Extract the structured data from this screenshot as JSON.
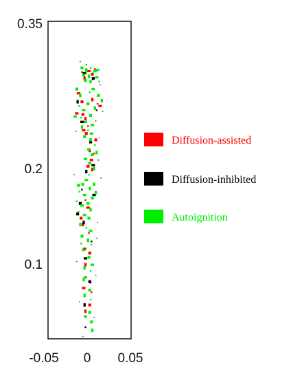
{
  "chart_data": {
    "type": "scatter",
    "xlim": [
      -0.05,
      0.05
    ],
    "ylim": [
      0.05,
      0.35
    ],
    "xticks": [
      {
        "value": -0.05,
        "label": "-0.05"
      },
      {
        "value": 0,
        "label": "0"
      },
      {
        "value": 0.05,
        "label": "0.05"
      }
    ],
    "yticks": [
      {
        "value": 0.35,
        "label": "0.35"
      },
      {
        "value": 0.2,
        "label": "0.2"
      },
      {
        "value": 0.1,
        "label": "0.1"
      }
    ],
    "grid": false,
    "legend_position": "right",
    "series": [
      {
        "name": "Diffusion-assisted",
        "color": "#ff0000",
        "points": [
          [
            -0.006,
            0.302
          ],
          [
            0.002,
            0.303
          ],
          [
            0.006,
            0.3
          ],
          [
            -0.003,
            0.296
          ],
          [
            0.009,
            0.305
          ],
          [
            -0.01,
            0.282
          ],
          [
            -0.006,
            0.274
          ],
          [
            0.006,
            0.276
          ],
          [
            0.012,
            0.272
          ],
          [
            0.015,
            0.27
          ],
          [
            -0.005,
            0.262
          ],
          [
            -0.002,
            0.258
          ],
          [
            0.001,
            0.251
          ],
          [
            -0.004,
            0.247
          ],
          [
            -0.001,
            0.244
          ],
          [
            0.003,
            0.228
          ],
          [
            0.008,
            0.225
          ],
          [
            0.005,
            0.219
          ],
          [
            0.001,
            0.213
          ],
          [
            0.006,
            0.21
          ],
          [
            -0.002,
            0.181
          ],
          [
            0.001,
            0.174
          ],
          [
            -0.007,
            0.164
          ],
          [
            -0.005,
            0.158
          ],
          [
            0.002,
            0.15
          ],
          [
            -0.003,
            0.135
          ],
          [
            0.003,
            0.131
          ],
          [
            -0.002,
            0.12
          ],
          [
            0.004,
            0.103
          ],
          [
            -0.004,
            0.098
          ],
          [
            0.003,
            0.082
          ],
          [
            -0.002,
            0.076
          ],
          [
            0.005,
            0.094
          ],
          [
            -0.012,
            0.263
          ],
          [
            0.01,
            0.238
          ]
        ]
      },
      {
        "name": "Diffusion-inhibited",
        "color": "#000000",
        "points": [
          [
            -0.003,
            0.301
          ],
          [
            0.007,
            0.296
          ],
          [
            -0.011,
            0.274
          ],
          [
            0.011,
            0.266
          ],
          [
            -0.006,
            0.255
          ],
          [
            0.004,
            0.236
          ],
          [
            -0.001,
            0.208
          ],
          [
            -0.006,
            0.191
          ],
          [
            0.008,
            0.186
          ],
          [
            -0.011,
            0.168
          ],
          [
            -0.004,
            0.16
          ],
          [
            0.005,
            0.142
          ],
          [
            -0.002,
            0.126
          ],
          [
            0.003,
            0.104
          ],
          [
            -0.003,
            0.082
          ],
          [
            -0.002,
            0.061
          ],
          [
            0.007,
            0.214
          ],
          [
            -0.008,
            0.178
          ]
        ]
      },
      {
        "name": "Autoignition",
        "color": "#00ee00",
        "points": [
          [
            -0.006,
            0.306
          ],
          [
            -0.001,
            0.304
          ],
          [
            0.004,
            0.306
          ],
          [
            0.009,
            0.303
          ],
          [
            -0.004,
            0.299
          ],
          [
            0.002,
            0.298
          ],
          [
            0.007,
            0.301
          ],
          [
            0.012,
            0.304
          ],
          [
            -0.002,
            0.294
          ],
          [
            0.004,
            0.293
          ],
          [
            -0.001,
            0.309
          ],
          [
            0.011,
            0.297
          ],
          [
            -0.012,
            0.286
          ],
          [
            -0.008,
            0.28
          ],
          [
            0.003,
            0.283
          ],
          [
            0.007,
            0.286
          ],
          [
            0.013,
            0.28
          ],
          [
            0.017,
            0.275
          ],
          [
            -0.009,
            0.27
          ],
          [
            -0.004,
            0.266
          ],
          [
            0.001,
            0.272
          ],
          [
            0.009,
            0.268
          ],
          [
            -0.007,
            0.259
          ],
          [
            -0.002,
            0.255
          ],
          [
            0.004,
            0.261
          ],
          [
            -0.006,
            0.25
          ],
          [
            0.001,
            0.247
          ],
          [
            0.006,
            0.252
          ],
          [
            -0.003,
            0.241
          ],
          [
            0.004,
            0.238
          ],
          [
            0.009,
            0.233
          ],
          [
            0.002,
            0.229
          ],
          [
            0.006,
            0.224
          ],
          [
            0.011,
            0.226
          ],
          [
            0.013,
            0.219
          ],
          [
            -0.002,
            0.22
          ],
          [
            0.003,
            0.216
          ],
          [
            0.008,
            0.211
          ],
          [
            0.002,
            0.205
          ],
          [
            -0.001,
            0.2
          ],
          [
            -0.005,
            0.196
          ],
          [
            0.003,
            0.192
          ],
          [
            -0.009,
            0.189
          ],
          [
            -0.003,
            0.186
          ],
          [
            0.006,
            0.183
          ],
          [
            0.01,
            0.188
          ],
          [
            -0.012,
            0.18
          ],
          [
            -0.006,
            0.176
          ],
          [
            0.001,
            0.178
          ],
          [
            0.004,
            0.172
          ],
          [
            -0.01,
            0.17
          ],
          [
            -0.003,
            0.167
          ],
          [
            0.002,
            0.164
          ],
          [
            -0.008,
            0.158
          ],
          [
            -0.001,
            0.155
          ],
          [
            0.004,
            0.152
          ],
          [
            -0.006,
            0.147
          ],
          [
            0.001,
            0.143
          ],
          [
            0.005,
            0.139
          ],
          [
            -0.004,
            0.134
          ],
          [
            0.002,
            0.127
          ],
          [
            -0.003,
            0.117
          ],
          [
            0.004,
            0.114
          ],
          [
            -0.002,
            0.108
          ],
          [
            0.003,
            0.096
          ],
          [
            -0.003,
            0.091
          ],
          [
            0.004,
            0.087
          ],
          [
            -0.002,
            0.071
          ],
          [
            0.005,
            0.066
          ],
          [
            -0.004,
            0.106
          ],
          [
            -0.001,
            0.301
          ],
          [
            0.005,
            0.244
          ],
          [
            -0.01,
            0.195
          ],
          [
            0.008,
            0.196
          ],
          [
            -0.007,
            0.14
          ],
          [
            0.006,
            0.12
          ],
          [
            0.003,
            0.075
          ],
          [
            0.006,
            0.058
          ],
          [
            0.014,
            0.293
          ],
          [
            -0.014,
            0.26
          ]
        ]
      }
    ],
    "scatter_noise": [
      [
        -0.008,
        0.312
      ],
      [
        0.015,
        0.29
      ],
      [
        0.018,
        0.265
      ],
      [
        -0.013,
        0.246
      ],
      [
        0.014,
        0.24
      ],
      [
        -0.015,
        0.205
      ],
      [
        0.016,
        0.202
      ],
      [
        0.012,
        0.16
      ],
      [
        -0.012,
        0.123
      ],
      [
        0.01,
        0.11
      ],
      [
        -0.009,
        0.085
      ],
      [
        0.008,
        0.07
      ],
      [
        -0.005,
        0.052
      ],
      [
        0.011,
        0.145
      ],
      [
        0.01,
        0.256
      ]
    ],
    "legend": [
      {
        "name": "Diffusion-assisted",
        "color": "#ff0000"
      },
      {
        "name": "Diffusion-inhibited",
        "color": "#000000"
      },
      {
        "name": "Autoignition",
        "color": "#00ee00"
      }
    ]
  }
}
